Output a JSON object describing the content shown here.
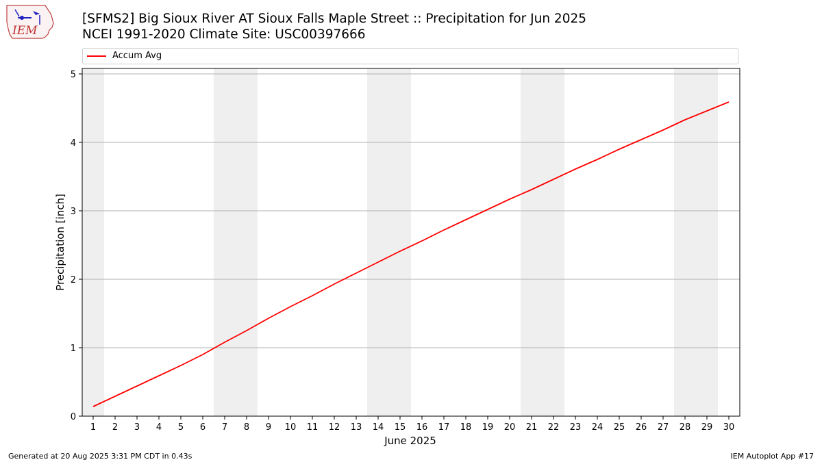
{
  "header": {
    "logo_text": "IEM",
    "title_line1": "[SFMS2] Big Sioux River  AT Sioux Falls Maple Street :: Precipitation for Jun 2025",
    "title_line2": "NCEI 1991-2020 Climate Site: USC00397666"
  },
  "legend": {
    "placement": "top",
    "entries": [
      {
        "label": "Accum Avg",
        "color": "#ff0000"
      }
    ]
  },
  "footer": {
    "left": "Generated at 20 Aug 2025 3:31 PM CDT in 0.43s",
    "right": "IEM Autoplot App #17"
  },
  "colors": {
    "line": "#ff0000",
    "weekend_shade": "#efefef",
    "grid": "#b0b0b0"
  },
  "chart_data": {
    "type": "line",
    "xlabel": "June 2025",
    "ylabel": "Precipitation [inch]",
    "xlim": [
      0.5,
      30.5
    ],
    "ylim": [
      0,
      5.08
    ],
    "grid": "horizontal",
    "x_ticks": [
      1,
      2,
      3,
      4,
      5,
      6,
      7,
      8,
      9,
      10,
      11,
      12,
      13,
      14,
      15,
      16,
      17,
      18,
      19,
      20,
      21,
      22,
      23,
      24,
      25,
      26,
      27,
      28,
      29,
      30
    ],
    "y_ticks": [
      0,
      1,
      2,
      3,
      4,
      5
    ],
    "weekend_days": [
      1,
      7,
      8,
      14,
      15,
      21,
      22,
      28,
      29
    ],
    "series": [
      {
        "name": "Accum Avg",
        "x": [
          1,
          2,
          3,
          4,
          5,
          6,
          7,
          8,
          9,
          10,
          11,
          12,
          13,
          14,
          15,
          16,
          17,
          18,
          19,
          20,
          21,
          22,
          23,
          24,
          25,
          26,
          27,
          28,
          29,
          30
        ],
        "values": [
          0.14,
          0.29,
          0.44,
          0.59,
          0.74,
          0.9,
          1.08,
          1.25,
          1.43,
          1.6,
          1.76,
          1.93,
          2.09,
          2.25,
          2.41,
          2.56,
          2.72,
          2.87,
          3.02,
          3.17,
          3.31,
          3.46,
          3.61,
          3.75,
          3.9,
          4.04,
          4.18,
          4.33,
          4.46,
          4.59
        ]
      }
    ]
  }
}
